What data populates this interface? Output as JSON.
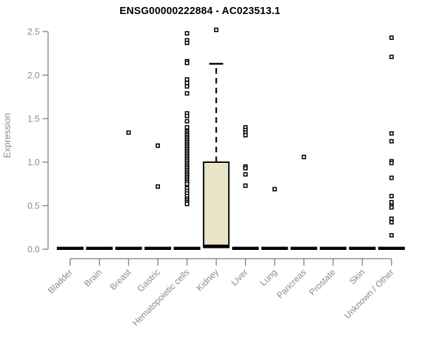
{
  "chart_data": {
    "type": "boxplot",
    "title": "ENSG00000222884 - AC023513.1",
    "ylabel": "Expression",
    "ylim": [
      0,
      2.5
    ],
    "yticks": [
      "0.0",
      "0.5",
      "1.0",
      "1.5",
      "2.0",
      "2.5"
    ],
    "grid": false,
    "legend": "none",
    "categories": [
      "Bladder",
      "Brain",
      "Breast",
      "Gastric",
      "Hematopoietic cells",
      "Kidney",
      "Liver",
      "Lung",
      "Pancreas",
      "Prostate",
      "Skin",
      "Unknown / Other"
    ],
    "boxes": [
      {
        "category": "Bladder",
        "low": 0,
        "q1": 0,
        "median": 0.01,
        "q3": 0.02,
        "high": 0.02,
        "outliers": []
      },
      {
        "category": "Brain",
        "low": 0,
        "q1": 0,
        "median": 0.01,
        "q3": 0.02,
        "high": 0.02,
        "outliers": []
      },
      {
        "category": "Breast",
        "low": 0,
        "q1": 0,
        "median": 0.01,
        "q3": 0.02,
        "high": 0.02,
        "outliers": [
          1.34
        ]
      },
      {
        "category": "Gastric",
        "low": 0,
        "q1": 0,
        "median": 0.01,
        "q3": 0.02,
        "high": 0.02,
        "outliers": [
          1.19,
          0.72
        ]
      },
      {
        "category": "Hematopoietic cells",
        "low": 0,
        "q1": 0,
        "median": 0.01,
        "q3": 0.02,
        "high": 0.02,
        "outliers": [
          2.48,
          2.4,
          2.37,
          2.16,
          2.14,
          1.95,
          1.91,
          1.87,
          1.79,
          1.56,
          1.53,
          1.47,
          1.4,
          1.35,
          1.33,
          1.31,
          1.29,
          1.27,
          1.25,
          1.23,
          1.21,
          1.19,
          1.17,
          1.15,
          1.13,
          1.11,
          1.09,
          1.07,
          1.05,
          1.03,
          1.01,
          0.99,
          0.97,
          0.95,
          0.93,
          0.91,
          0.89,
          0.87,
          0.85,
          0.83,
          0.81,
          0.79,
          0.77,
          0.75,
          0.7,
          0.67,
          0.64,
          0.61,
          0.58,
          0.56,
          0.54,
          0.52
        ]
      },
      {
        "category": "Kidney",
        "low": 0.02,
        "q1": 0.02,
        "median": 0.04,
        "q3": 1.0,
        "high": 2.13,
        "outliers": [
          2.52
        ]
      },
      {
        "category": "Liver",
        "low": 0,
        "q1": 0,
        "median": 0.01,
        "q3": 0.02,
        "high": 0.02,
        "outliers": [
          1.4,
          1.37,
          1.34,
          1.31,
          0.95,
          0.93,
          0.86,
          0.73
        ]
      },
      {
        "category": "Lung",
        "low": 0,
        "q1": 0,
        "median": 0.01,
        "q3": 0.02,
        "high": 0.02,
        "outliers": [
          0.69
        ]
      },
      {
        "category": "Pancreas",
        "low": 0,
        "q1": 0,
        "median": 0.01,
        "q3": 0.02,
        "high": 0.02,
        "outliers": [
          1.06
        ]
      },
      {
        "category": "Prostate",
        "low": 0,
        "q1": 0,
        "median": 0.01,
        "q3": 0.02,
        "high": 0.02,
        "outliers": []
      },
      {
        "category": "Skin",
        "low": 0,
        "q1": 0,
        "median": 0.01,
        "q3": 0.02,
        "high": 0.02,
        "outliers": []
      },
      {
        "category": "Unknown / Other",
        "low": 0,
        "q1": 0,
        "median": 0.01,
        "q3": 0.02,
        "high": 0.02,
        "outliers": [
          2.43,
          2.21,
          1.33,
          1.24,
          1.01,
          0.99,
          0.82,
          0.61,
          0.54,
          0.5,
          0.48,
          0.35,
          0.31,
          0.16
        ]
      }
    ],
    "colors": {
      "box_fill": "#E9E3C8",
      "box_stroke": "#000000",
      "median": "#000000",
      "whisker": "#000000",
      "outlier_fill": "#ffffff",
      "outlier_stroke": "#000000",
      "axis": "#8a8a8a",
      "tick_label": "#8a8a8a",
      "title": "#000000",
      "background": "#ffffff"
    }
  }
}
